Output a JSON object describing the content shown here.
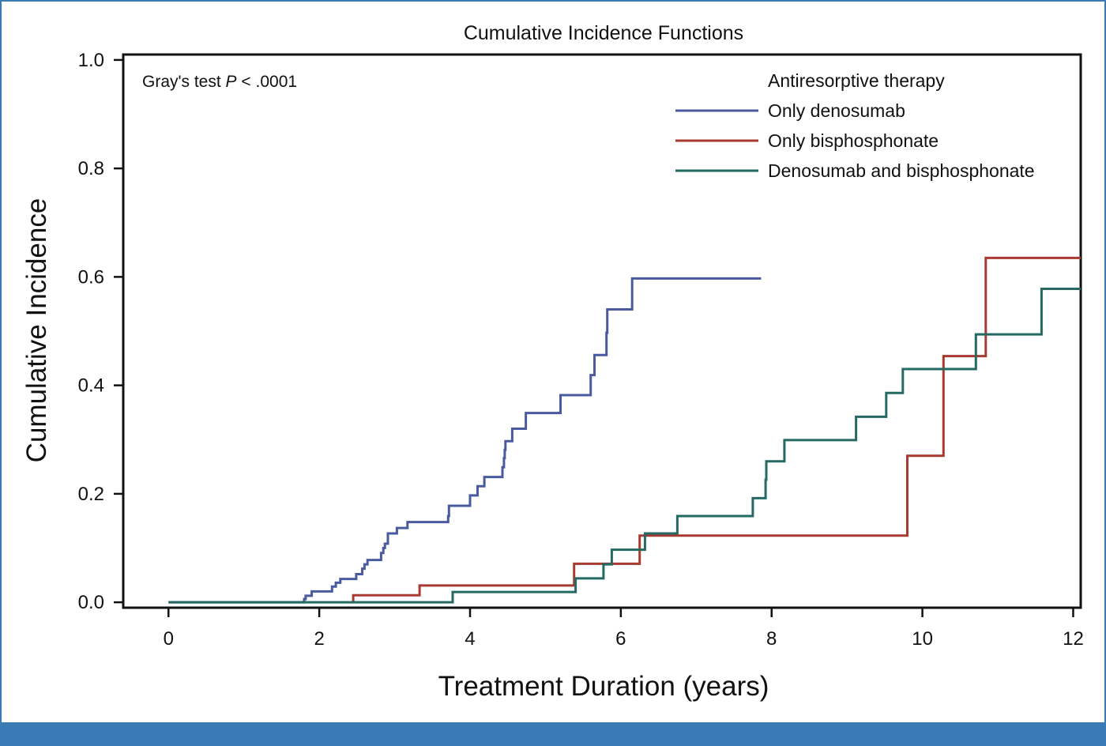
{
  "chart_data": {
    "type": "line",
    "step": true,
    "title": "Cumulative Incidence Functions",
    "xlabel": "Treatment Duration (years)",
    "ylabel": "Cumulative Incidence",
    "xlim": [
      -0.6,
      12.1
    ],
    "ylim": [
      -0.01,
      1.01
    ],
    "xticks": [
      0,
      2,
      4,
      6,
      8,
      10,
      12
    ],
    "yticks": [
      0.0,
      0.2,
      0.4,
      0.6,
      0.8,
      1.0
    ],
    "ytick_labels": [
      "0.0",
      "0.2",
      "0.4",
      "0.6",
      "0.8",
      "1.0"
    ],
    "annotation": {
      "prefix": "Gray's test ",
      "italic": "P",
      "suffix": " < .0001"
    },
    "legend": {
      "title": "Antiresorptive therapy",
      "position": "top-right"
    },
    "series": [
      {
        "name": "Only denosumab",
        "color": "#4a5aa0",
        "points": [
          [
            0.0,
            0.0
          ],
          [
            1.8,
            0.0
          ],
          [
            1.8,
            0.006
          ],
          [
            1.82,
            0.006
          ],
          [
            1.82,
            0.012
          ],
          [
            1.9,
            0.012
          ],
          [
            1.9,
            0.02
          ],
          [
            2.17,
            0.02
          ],
          [
            2.17,
            0.029
          ],
          [
            2.22,
            0.029
          ],
          [
            2.22,
            0.036
          ],
          [
            2.28,
            0.036
          ],
          [
            2.28,
            0.043
          ],
          [
            2.49,
            0.043
          ],
          [
            2.49,
            0.052
          ],
          [
            2.57,
            0.052
          ],
          [
            2.57,
            0.062
          ],
          [
            2.6,
            0.062
          ],
          [
            2.6,
            0.07
          ],
          [
            2.64,
            0.07
          ],
          [
            2.64,
            0.078
          ],
          [
            2.82,
            0.078
          ],
          [
            2.82,
            0.091
          ],
          [
            2.85,
            0.091
          ],
          [
            2.85,
            0.1
          ],
          [
            2.87,
            0.1
          ],
          [
            2.87,
            0.108
          ],
          [
            2.91,
            0.108
          ],
          [
            2.91,
            0.127
          ],
          [
            3.03,
            0.127
          ],
          [
            3.03,
            0.137
          ],
          [
            3.17,
            0.137
          ],
          [
            3.17,
            0.148
          ],
          [
            3.71,
            0.148
          ],
          [
            3.71,
            0.159
          ],
          [
            3.72,
            0.159
          ],
          [
            3.72,
            0.178
          ],
          [
            4.0,
            0.178
          ],
          [
            4.0,
            0.197
          ],
          [
            4.1,
            0.197
          ],
          [
            4.1,
            0.214
          ],
          [
            4.19,
            0.214
          ],
          [
            4.19,
            0.231
          ],
          [
            4.43,
            0.231
          ],
          [
            4.43,
            0.249
          ],
          [
            4.45,
            0.249
          ],
          [
            4.45,
            0.266
          ],
          [
            4.46,
            0.266
          ],
          [
            4.46,
            0.281
          ],
          [
            4.47,
            0.281
          ],
          [
            4.47,
            0.297
          ],
          [
            4.56,
            0.297
          ],
          [
            4.56,
            0.32
          ],
          [
            4.74,
            0.32
          ],
          [
            4.74,
            0.349
          ],
          [
            5.2,
            0.349
          ],
          [
            5.2,
            0.382
          ],
          [
            5.6,
            0.382
          ],
          [
            5.6,
            0.419
          ],
          [
            5.65,
            0.419
          ],
          [
            5.65,
            0.456
          ],
          [
            5.81,
            0.456
          ],
          [
            5.81,
            0.497
          ],
          [
            5.82,
            0.497
          ],
          [
            5.82,
            0.54
          ],
          [
            6.15,
            0.54
          ],
          [
            6.15,
            0.597
          ],
          [
            7.86,
            0.597
          ]
        ]
      },
      {
        "name": "Only bisphosphonate",
        "color": "#a83a32",
        "points": [
          [
            2.45,
            0.0
          ],
          [
            2.45,
            0.013
          ],
          [
            3.33,
            0.013
          ],
          [
            3.33,
            0.031
          ],
          [
            5.38,
            0.031
          ],
          [
            5.38,
            0.071
          ],
          [
            6.25,
            0.071
          ],
          [
            6.25,
            0.123
          ],
          [
            9.8,
            0.123
          ],
          [
            9.8,
            0.27
          ],
          [
            10.28,
            0.27
          ],
          [
            10.28,
            0.454
          ],
          [
            10.84,
            0.454
          ],
          [
            10.84,
            0.635
          ],
          [
            12.2,
            0.635
          ]
        ]
      },
      {
        "name": "Denosumab and bisphosphonate",
        "color": "#246a63",
        "points": [
          [
            0.0,
            0.0
          ],
          [
            3.77,
            0.0
          ],
          [
            3.77,
            0.019
          ],
          [
            5.4,
            0.019
          ],
          [
            5.4,
            0.044
          ],
          [
            5.77,
            0.044
          ],
          [
            5.77,
            0.07
          ],
          [
            5.88,
            0.07
          ],
          [
            5.88,
            0.097
          ],
          [
            6.32,
            0.097
          ],
          [
            6.32,
            0.127
          ],
          [
            6.75,
            0.127
          ],
          [
            6.75,
            0.159
          ],
          [
            7.75,
            0.159
          ],
          [
            7.75,
            0.192
          ],
          [
            7.92,
            0.192
          ],
          [
            7.92,
            0.226
          ],
          [
            7.93,
            0.226
          ],
          [
            7.93,
            0.26
          ],
          [
            8.17,
            0.26
          ],
          [
            8.17,
            0.299
          ],
          [
            9.12,
            0.299
          ],
          [
            9.12,
            0.342
          ],
          [
            9.52,
            0.342
          ],
          [
            9.52,
            0.386
          ],
          [
            9.74,
            0.386
          ],
          [
            9.74,
            0.43
          ],
          [
            10.71,
            0.43
          ],
          [
            10.71,
            0.494
          ],
          [
            11.58,
            0.494
          ],
          [
            11.58,
            0.578
          ],
          [
            12.2,
            0.578
          ]
        ]
      }
    ]
  }
}
